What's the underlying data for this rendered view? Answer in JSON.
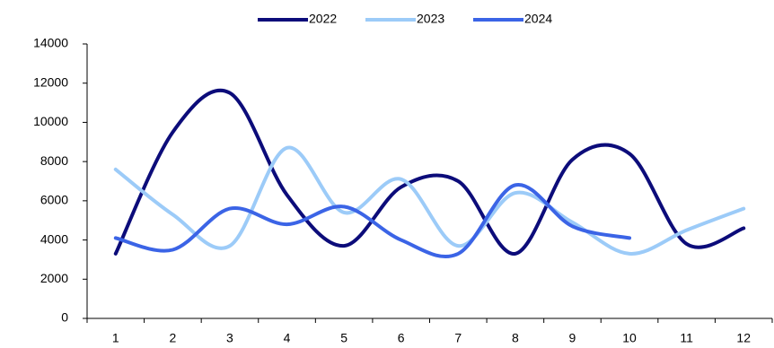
{
  "chart_data": {
    "type": "line",
    "categories": [
      "1",
      "2",
      "3",
      "4",
      "5",
      "6",
      "7",
      "8",
      "9",
      "10",
      "11",
      "12"
    ],
    "series": [
      {
        "name": "2022",
        "color": "#0c0c7a",
        "values": [
          3300,
          9500,
          11500,
          6300,
          3700,
          6700,
          7000,
          3300,
          8100,
          8400,
          3800,
          4600
        ]
      },
      {
        "name": "2023",
        "color": "#9ccbf8",
        "values": [
          7600,
          5300,
          3700,
          8700,
          5400,
          7100,
          3700,
          6400,
          4900,
          3300,
          4500,
          5600
        ]
      },
      {
        "name": "2024",
        "color": "#3b64e6",
        "values": [
          4100,
          3500,
          5600,
          4800,
          5700,
          4000,
          3300,
          6800,
          4700,
          4100,
          null,
          null
        ]
      }
    ],
    "ylim": [
      0,
      14000
    ],
    "yticks": [
      0,
      2000,
      4000,
      6000,
      8000,
      10000,
      12000,
      14000
    ],
    "smooth": true,
    "legend": "top"
  }
}
